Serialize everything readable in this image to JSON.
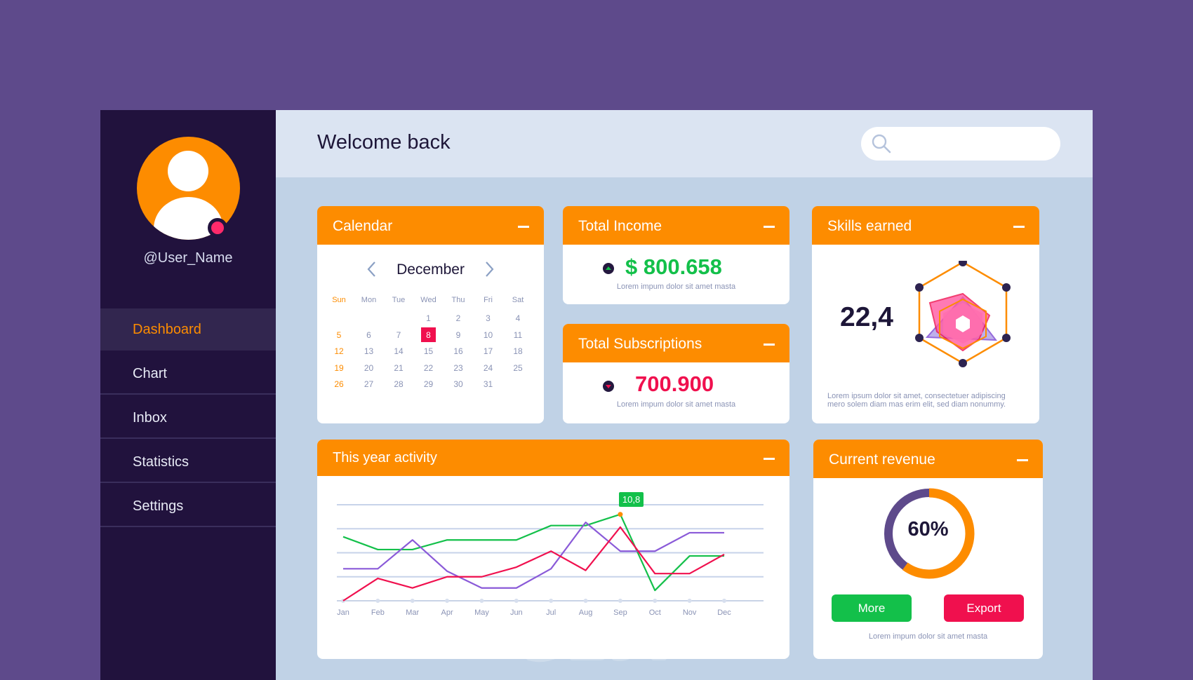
{
  "colors": {
    "background": "#5e4a8b",
    "sidebar": "#21123d",
    "accent": "#fd8c00",
    "green": "#13c04a",
    "red": "#f0104e",
    "purple": "#8a5ad8"
  },
  "user": {
    "name": "@User_Name",
    "avatar_icon": "user-icon"
  },
  "nav": [
    {
      "label": "Dashboard",
      "active": true
    },
    {
      "label": "Chart"
    },
    {
      "label": "Inbox"
    },
    {
      "label": "Statistics"
    },
    {
      "label": "Settings"
    }
  ],
  "header": {
    "title": "Welcome back",
    "search_placeholder": "",
    "search_icon": "search-icon"
  },
  "calendar": {
    "title": "Calendar",
    "month": "December",
    "weekdays": [
      "Sun",
      "Mon",
      "Tue",
      "Wed",
      "Thu",
      "Fri",
      "Sat"
    ],
    "rows": [
      [
        "",
        "",
        "",
        "1",
        "2",
        "3",
        "4"
      ],
      [
        "5",
        "6",
        "7",
        "8",
        "9",
        "10",
        "11"
      ],
      [
        "12",
        "13",
        "14",
        "15",
        "16",
        "17",
        "18"
      ],
      [
        "19",
        "20",
        "21",
        "22",
        "23",
        "24",
        "25"
      ],
      [
        "26",
        "27",
        "28",
        "29",
        "30",
        "31",
        ""
      ]
    ],
    "selected_day": "8"
  },
  "income": {
    "title": "Total Income",
    "amount": "$ 800.658",
    "caption": "Lorem impum dolor sit amet masta",
    "trend": "up"
  },
  "subscriptions": {
    "title": "Total Subscriptions",
    "amount": "700.900",
    "caption": "Lorem impum dolor sit amet masta",
    "trend": "down"
  },
  "skills": {
    "title": "Skills earned",
    "value": "22,4",
    "caption": "Lorem ipsum dolor sit amet, consectetuer adipiscing mero solem diam mas erim elit, sed diam nonummy."
  },
  "activity": {
    "title": "This year activity",
    "tooltip": "10,8"
  },
  "revenue": {
    "title": "Current revenue",
    "percent": 60,
    "percent_label": "60%",
    "more_label": "More",
    "export_label": "Export",
    "caption": "Lorem impum dolor sit amet masta"
  },
  "chart_data": {
    "type": "line",
    "x": [
      "Jan",
      "Feb",
      "Mar",
      "Apr",
      "May",
      "Jun",
      "Jul",
      "Aug",
      "Sep",
      "Oct",
      "Nov",
      "Dec"
    ],
    "ylim": [
      0,
      12
    ],
    "grid": true,
    "series": [
      {
        "color": "#13c04a",
        "values": [
          8,
          6.4,
          6.4,
          7.6,
          7.6,
          7.6,
          9.4,
          9.4,
          10.8,
          1.3,
          5.6,
          5.6
        ]
      },
      {
        "color": "#8a5ad8",
        "values": [
          4,
          4,
          7.6,
          3.7,
          1.6,
          1.6,
          4,
          9.8,
          6.2,
          6.2,
          8.5,
          8.5
        ]
      },
      {
        "color": "#f0104e",
        "values": [
          0,
          2.8,
          1.6,
          3,
          3,
          4.2,
          6.2,
          3.8,
          9.2,
          3.4,
          3.4,
          5.8
        ]
      }
    ]
  }
}
